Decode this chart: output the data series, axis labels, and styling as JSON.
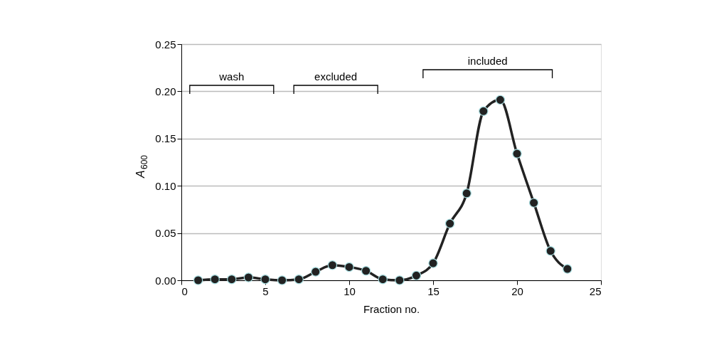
{
  "chart_data": {
    "type": "line",
    "xlabel": "Fraction no.",
    "ylabel": "A$_{600}$",
    "x": [
      1,
      2,
      3,
      4,
      5,
      6,
      7,
      8,
      9,
      10,
      11,
      12,
      13,
      14,
      15,
      16,
      17,
      18,
      19,
      20,
      21,
      22,
      23
    ],
    "series": [
      {
        "color": "#222222",
        "values": [
          0.0,
          0.001,
          0.001,
          0.003,
          0.001,
          0.0,
          0.001,
          0.009,
          0.016,
          0.014,
          0.01,
          0.001,
          0.0,
          0.005,
          0.018,
          0.06,
          0.092,
          0.179,
          0.191,
          0.134,
          0.082,
          0.031,
          0.012
        ]
      }
    ],
    "xlim": [
      0,
      25
    ],
    "xticks": [
      0,
      5,
      10,
      15,
      20,
      25
    ],
    "ylim": [
      0,
      0.25
    ],
    "yticks": [
      {
        "value": 0,
        "label": "0.00"
      },
      {
        "value": 0.05,
        "label": "0.05"
      },
      {
        "value": 0.1,
        "label": "0.10"
      },
      {
        "value": 0.15,
        "label": "0.15"
      },
      {
        "value": 0.2,
        "label": "0.20"
      },
      {
        "value": 0.25,
        "label": "0.25"
      }
    ],
    "grid": "y",
    "marker": "circle",
    "line_style": "solid",
    "annotations": [
      "wash",
      "excluded",
      "included"
    ]
  }
}
